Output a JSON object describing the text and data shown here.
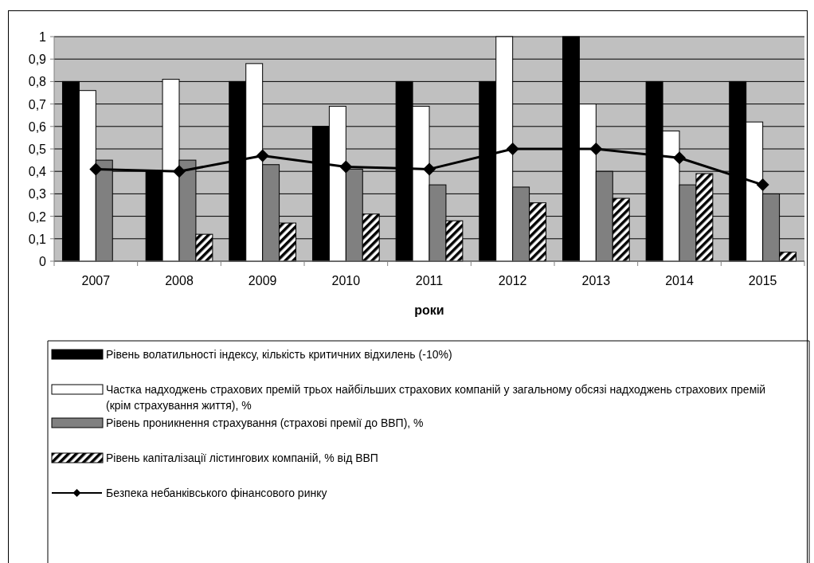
{
  "chart_data": {
    "type": "bar",
    "xlabel": "роки",
    "categories": [
      "2007",
      "2008",
      "2009",
      "2010",
      "2011",
      "2012",
      "2013",
      "2014",
      "2015"
    ],
    "series": [
      {
        "name": "Рівень волатильності індексу, кількість критичних відхилень (-10%)",
        "color": "#000000",
        "values": [
          0.8,
          0.4,
          0.8,
          0.6,
          0.8,
          0.8,
          1,
          0.8,
          0.8
        ]
      },
      {
        "name": "Частка надходжень страхових премій трьох найбільших страхових компаній у загальному обсязі надходжень страхових премій (крім страхування життя), %",
        "color": "#ffffff",
        "values": [
          0.76,
          0.81,
          0.88,
          0.69,
          0.69,
          1,
          0.7,
          0.58,
          0.62
        ]
      },
      {
        "name": "Рівень проникнення страхування (страхові премії до ВВП), %",
        "color": "#808080",
        "values": [
          0.45,
          0.45,
          0.43,
          0.41,
          0.34,
          0.33,
          0.4,
          0.34,
          0.3
        ]
      },
      {
        "name": "Рівень капіталізації лістингових компаній, % від ВВП",
        "color": "#000000",
        "values": [
          null,
          0.12,
          0.17,
          0.21,
          0.18,
          0.26,
          0.28,
          0.39,
          0.04
        ]
      },
      {
        "name": "Безпека небанківського фінансового ринку",
        "type": "line",
        "color": "#000000",
        "values": [
          0.41,
          0.4,
          0.47,
          0.42,
          0.41,
          0.5,
          0.5,
          0.46,
          0.34
        ]
      }
    ],
    "ylim": [
      0,
      1
    ],
    "yticks": [
      {
        "value": 0,
        "label": "0"
      },
      {
        "value": 0.1,
        "label": "0,1"
      },
      {
        "value": 0.2,
        "label": "0,2"
      },
      {
        "value": 0.3,
        "label": "0,3"
      },
      {
        "value": 0.4,
        "label": "0,4"
      },
      {
        "value": 0.5,
        "label": "0,5"
      },
      {
        "value": 0.6,
        "label": "0,6"
      },
      {
        "value": 0.7,
        "label": "0,7"
      },
      {
        "value": 0.8,
        "label": "0,8"
      },
      {
        "value": 0.9,
        "label": "0,9"
      },
      {
        "value": 1,
        "label": "1"
      }
    ],
    "grid": "y",
    "legend": "bottom",
    "marker": "diamond",
    "line_style": "solid"
  }
}
